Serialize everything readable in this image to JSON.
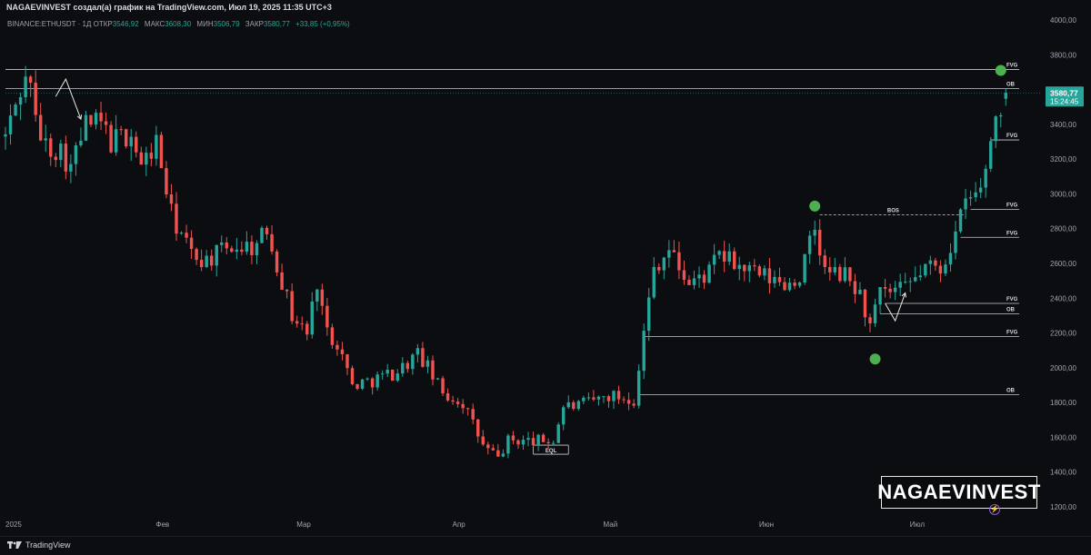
{
  "header": {
    "title": "NAGAEVINVEST создал(а) график на TradingView.com, Июл 19, 2025 11:35 UTC+3"
  },
  "legend": {
    "symbol": "BINANCE:ETHUSDT · 1Д",
    "open_label": "ОТКР",
    "open": "3546,92",
    "high_label": "МАКС",
    "high": "3608,30",
    "low_label": "МИН",
    "low": "3506,79",
    "close_label": "ЗАКР",
    "close": "3580,77",
    "change": "+33,85 (+0,95%)"
  },
  "price_tag": {
    "price": "3580,77",
    "countdown": "15:24:45"
  },
  "watermark": {
    "text": "NAGAEVINVEST"
  },
  "footer": {
    "brand": "TradingView"
  },
  "colors": {
    "up": "#26a69a",
    "down": "#ef5350",
    "background": "#0c0d10",
    "marker": "#4caf50"
  },
  "chart_data": {
    "type": "candlestick",
    "title": "",
    "xlabel": "",
    "ylabel": "",
    "ylim": [
      1130,
      4030
    ],
    "y_ticks": [
      "4000,00",
      "3800,00",
      "3600,00",
      "3400,00",
      "3200,00",
      "3000,00",
      "2800,00",
      "2600,00",
      "2400,00",
      "2200,00",
      "2000,00",
      "1800,00",
      "1600,00",
      "1400,00",
      "1200,00"
    ],
    "x_ticks": [
      {
        "label": "2025",
        "date": "2025-01-01"
      },
      {
        "label": "Фев",
        "date": "2025-02-01"
      },
      {
        "label": "Мар",
        "date": "2025-03-01"
      },
      {
        "label": "Апр",
        "date": "2025-04-01"
      },
      {
        "label": "Май",
        "date": "2025-05-01"
      },
      {
        "label": "Июн",
        "date": "2025-06-01"
      },
      {
        "label": "Июл",
        "date": "2025-07-01"
      }
    ],
    "x_range": [
      "2025-01-01",
      "2025-07-26"
    ],
    "anchors": [
      {
        "date": "2025-01-01",
        "close": 3330
      },
      {
        "date": "2025-01-04",
        "close": 3600
      },
      {
        "date": "2025-01-06",
        "close": 3680
      },
      {
        "date": "2025-01-07",
        "close": 3400
      },
      {
        "date": "2025-01-09",
        "close": 3280
      },
      {
        "date": "2025-01-12",
        "close": 3250
      },
      {
        "date": "2025-01-14",
        "close": 3150
      },
      {
        "date": "2025-01-17",
        "close": 3400
      },
      {
        "date": "2025-01-20",
        "close": 3400
      },
      {
        "date": "2025-01-22",
        "close": 3300
      },
      {
        "date": "2025-01-26",
        "close": 3350
      },
      {
        "date": "2025-01-28",
        "close": 3150
      },
      {
        "date": "2025-01-31",
        "close": 3300
      },
      {
        "date": "2025-02-03",
        "close": 2880
      },
      {
        "date": "2025-02-07",
        "close": 2650
      },
      {
        "date": "2025-02-10",
        "close": 2620
      },
      {
        "date": "2025-02-15",
        "close": 2700
      },
      {
        "date": "2025-02-20",
        "close": 2700
      },
      {
        "date": "2025-02-22",
        "close": 2800
      },
      {
        "date": "2025-02-25",
        "close": 2500
      },
      {
        "date": "2025-02-27",
        "close": 2300
      },
      {
        "date": "2025-03-02",
        "close": 2200
      },
      {
        "date": "2025-03-04",
        "close": 2500
      },
      {
        "date": "2025-03-06",
        "close": 2200
      },
      {
        "date": "2025-03-08",
        "close": 2150
      },
      {
        "date": "2025-03-11",
        "close": 1900
      },
      {
        "date": "2025-03-15",
        "close": 1930
      },
      {
        "date": "2025-03-20",
        "close": 1980
      },
      {
        "date": "2025-03-24",
        "close": 2080
      },
      {
        "date": "2025-03-26",
        "close": 2000
      },
      {
        "date": "2025-03-29",
        "close": 1850
      },
      {
        "date": "2025-04-02",
        "close": 1800
      },
      {
        "date": "2025-04-06",
        "close": 1550
      },
      {
        "date": "2025-04-09",
        "close": 1480
      },
      {
        "date": "2025-04-11",
        "close": 1580
      },
      {
        "date": "2025-04-15",
        "close": 1580
      },
      {
        "date": "2025-04-20",
        "close": 1580
      },
      {
        "date": "2025-04-22",
        "close": 1780
      },
      {
        "date": "2025-04-25",
        "close": 1780
      },
      {
        "date": "2025-05-01",
        "close": 1840
      },
      {
        "date": "2025-05-06",
        "close": 1820
      },
      {
        "date": "2025-05-08",
        "close": 2200
      },
      {
        "date": "2025-05-10",
        "close": 2580
      },
      {
        "date": "2025-05-13",
        "close": 2680
      },
      {
        "date": "2025-05-17",
        "close": 2480
      },
      {
        "date": "2025-05-21",
        "close": 2550
      },
      {
        "date": "2025-05-23",
        "close": 2650
      },
      {
        "date": "2025-05-27",
        "close": 2580
      },
      {
        "date": "2025-05-31",
        "close": 2530
      },
      {
        "date": "2025-06-05",
        "close": 2480
      },
      {
        "date": "2025-06-08",
        "close": 2520
      },
      {
        "date": "2025-06-11",
        "close": 2800
      },
      {
        "date": "2025-06-13",
        "close": 2550
      },
      {
        "date": "2025-06-17",
        "close": 2530
      },
      {
        "date": "2025-06-20",
        "close": 2420
      },
      {
        "date": "2025-06-22",
        "close": 2230
      },
      {
        "date": "2025-06-24",
        "close": 2420
      },
      {
        "date": "2025-06-29",
        "close": 2450
      },
      {
        "date": "2025-07-03",
        "close": 2580
      },
      {
        "date": "2025-07-06",
        "close": 2570
      },
      {
        "date": "2025-07-09",
        "close": 2770
      },
      {
        "date": "2025-07-11",
        "close": 2950
      },
      {
        "date": "2025-07-14",
        "close": 3020
      },
      {
        "date": "2025-07-17",
        "close": 3450
      },
      {
        "date": "2025-07-19",
        "close": 3580
      }
    ],
    "horizontal_levels": [
      {
        "price": 3715,
        "from": "2025-01-01",
        "to": "2025-07-22",
        "label": "FVG"
      },
      {
        "price": 3605,
        "from": "2025-01-01",
        "to": "2025-07-22",
        "label": "OB"
      },
      {
        "price": 3310,
        "from": "2025-07-16",
        "to": "2025-07-22",
        "label": "FVG"
      },
      {
        "price": 2910,
        "from": "2025-07-12",
        "to": "2025-07-22",
        "label": "FVG"
      },
      {
        "price": 2880,
        "from": "2025-06-12",
        "to": "2025-07-11",
        "label": "BOS",
        "dashed": true
      },
      {
        "price": 2750,
        "from": "2025-07-10",
        "to": "2025-07-22",
        "label": "FVG"
      },
      {
        "price": 2370,
        "from": "2025-06-25",
        "to": "2025-07-22",
        "label": "FVG"
      },
      {
        "price": 2310,
        "from": "2025-06-24",
        "to": "2025-07-22",
        "label": "OB"
      },
      {
        "price": 2180,
        "from": "2025-05-08",
        "to": "2025-07-22",
        "label": "FVG"
      },
      {
        "price": 1845,
        "from": "2025-05-07",
        "to": "2025-07-22",
        "label": "OB"
      },
      {
        "price": 1555,
        "from": "2025-04-16",
        "to": "2025-04-23",
        "label": "EQL",
        "label_below": true
      }
    ],
    "swing_markers": [
      {
        "date": "2025-06-11",
        "price": 2930
      },
      {
        "date": "2025-06-23",
        "price": 2050
      },
      {
        "date": "2025-07-18",
        "price": 3710
      }
    ],
    "arrows": [
      {
        "points": [
          [
            "2025-01-11",
            3560
          ],
          [
            "2025-01-13",
            3660
          ],
          [
            "2025-01-16",
            3430
          ]
        ]
      },
      {
        "points": [
          [
            "2025-06-25",
            2370
          ],
          [
            "2025-06-27",
            2270
          ],
          [
            "2025-06-29",
            2430
          ]
        ]
      }
    ],
    "last_price": 3580.77
  }
}
